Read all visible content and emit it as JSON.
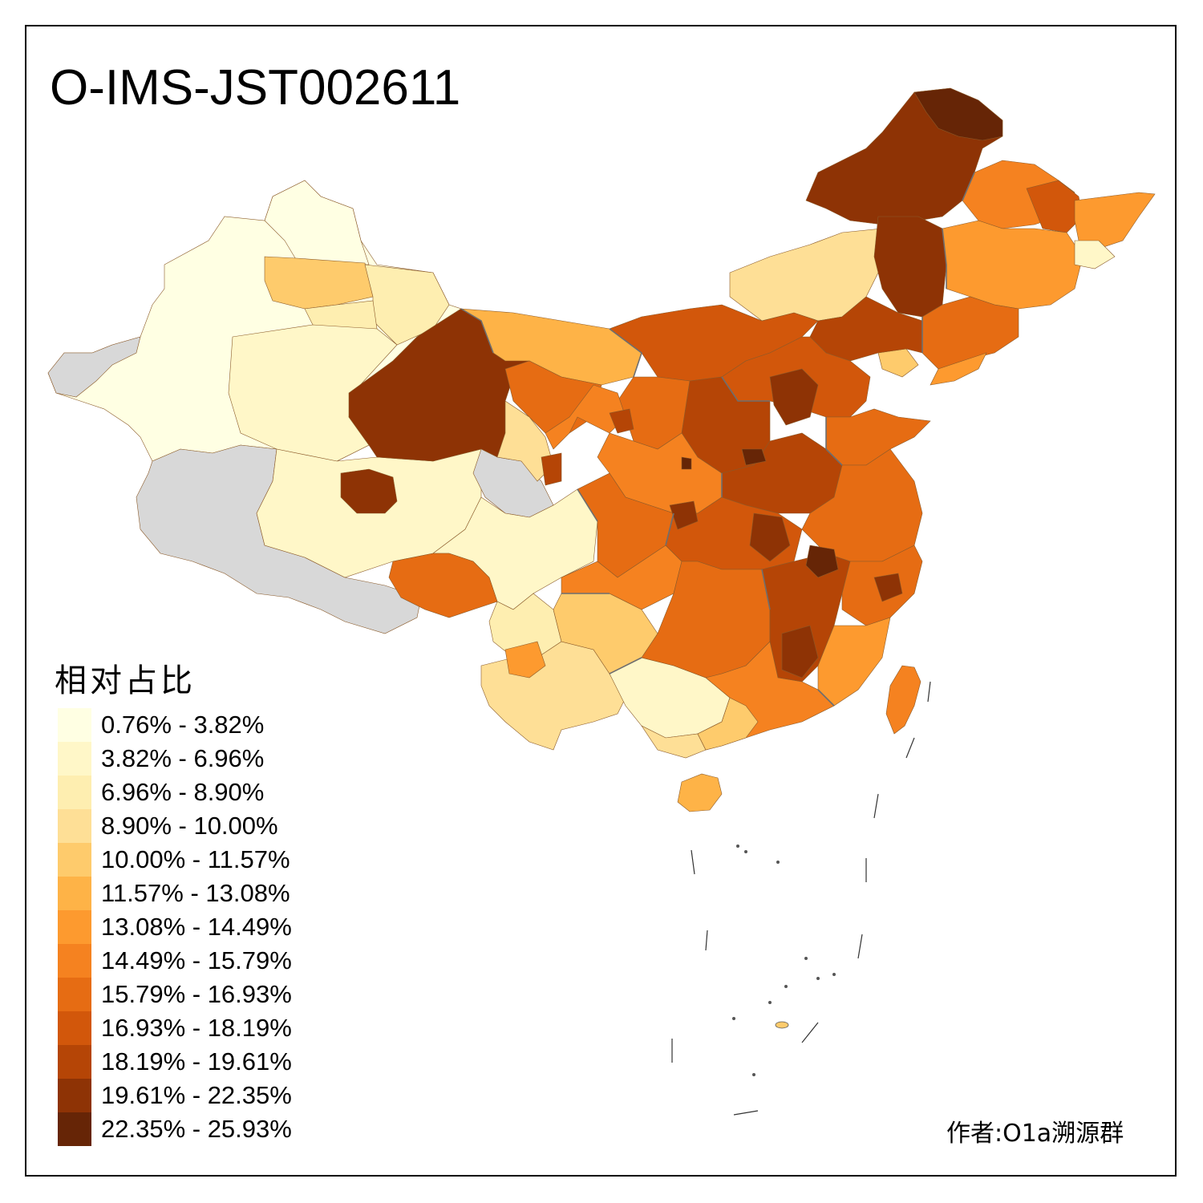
{
  "title": "O-IMS-JST002611",
  "legend": {
    "title": "相对占比",
    "classes": [
      {
        "label": "0.76% - 3.82%",
        "color": "#ffffe3"
      },
      {
        "label": "3.82% - 6.96%",
        "color": "#fff7c8"
      },
      {
        "label": "6.96% - 8.90%",
        "color": "#feeeb0"
      },
      {
        "label": "8.90% - 10.00%",
        "color": "#fedf96"
      },
      {
        "label": "10.00% - 11.57%",
        "color": "#fecb6c"
      },
      {
        "label": "11.57% - 13.08%",
        "color": "#feb347"
      },
      {
        "label": "13.08% - 14.49%",
        "color": "#fd9a2f"
      },
      {
        "label": "14.49% - 15.79%",
        "color": "#f58220"
      },
      {
        "label": "15.79% - 16.93%",
        "color": "#e66c13"
      },
      {
        "label": "16.93% - 18.19%",
        "color": "#d2570b"
      },
      {
        "label": "18.19% - 19.61%",
        "color": "#b54506"
      },
      {
        "label": "19.61% - 22.35%",
        "color": "#8e3305"
      },
      {
        "label": "22.35% - 25.93%",
        "color": "#662506"
      }
    ],
    "no_data_color": "#d8d8d8"
  },
  "credit": "作者:O1a溯源群"
}
